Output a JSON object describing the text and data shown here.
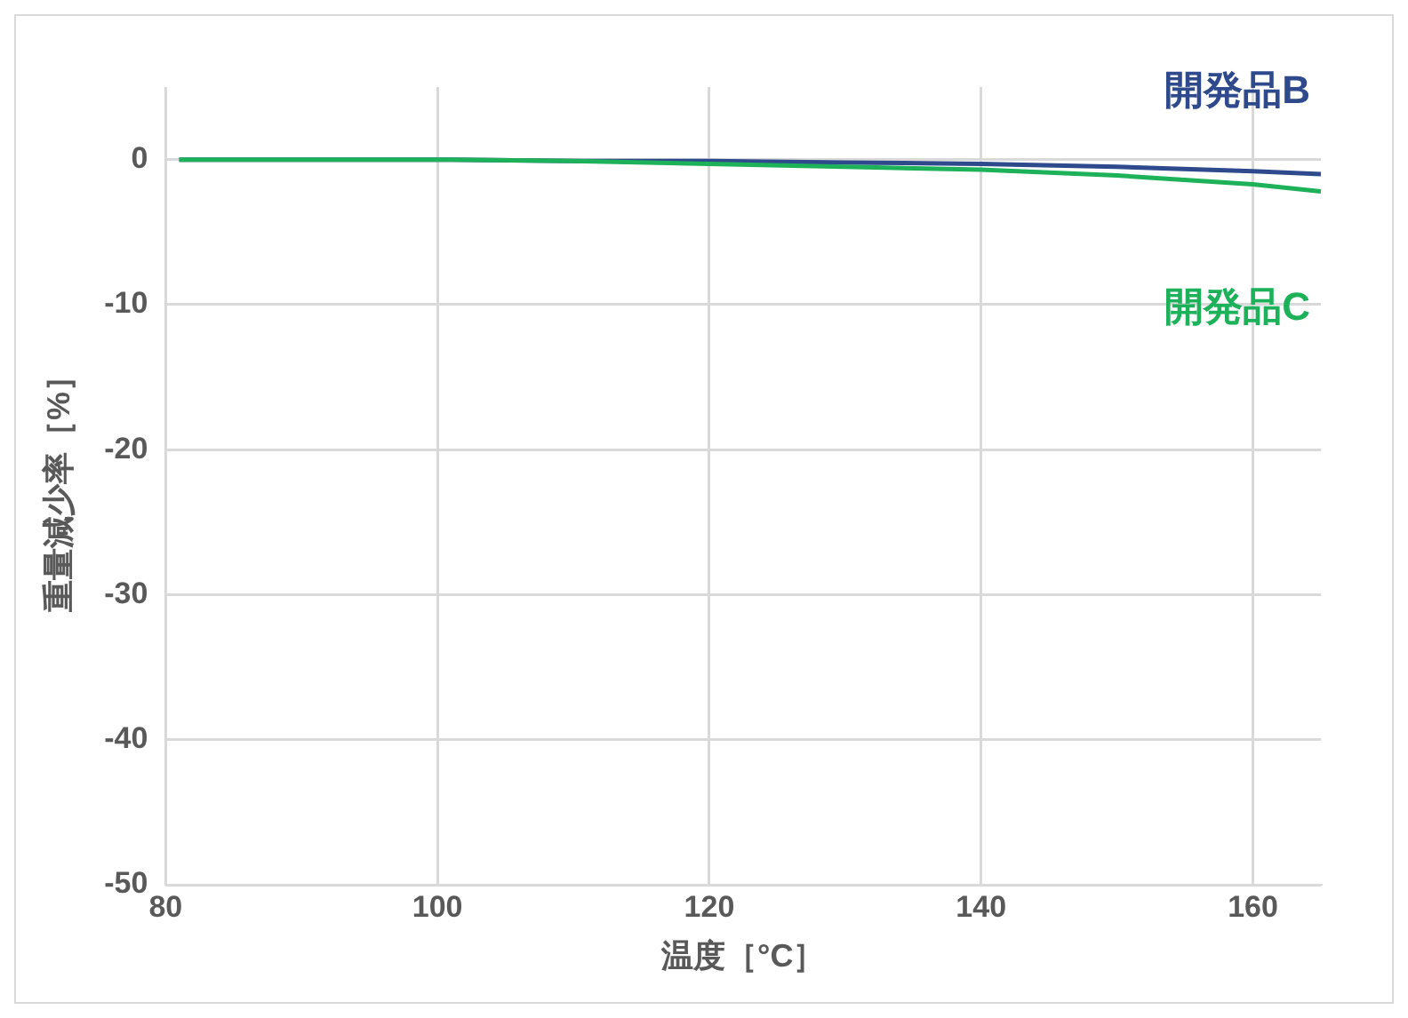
{
  "chart_data": {
    "type": "line",
    "xlabel": "温度［°C］",
    "ylabel": "重量減少率［%］",
    "xlim": [
      80,
      165
    ],
    "xticks": [
      80,
      100,
      120,
      140,
      160
    ],
    "ylim": [
      -50,
      5
    ],
    "yticks": [
      0,
      -10,
      -20,
      -30,
      -40,
      -50
    ],
    "grid": true,
    "legend": false,
    "marker": "none",
    "line_style": "solid",
    "series": [
      {
        "name": "開発品B",
        "color": "#2e4a8c",
        "x": [
          81,
          90,
          100,
          110,
          120,
          130,
          140,
          150,
          160,
          165
        ],
        "values": [
          0,
          0,
          0,
          -0.1,
          -0.1,
          -0.2,
          -0.3,
          -0.5,
          -0.8,
          -1.0
        ]
      },
      {
        "name": "開発品C",
        "color": "#1db25a",
        "x": [
          81,
          90,
          100,
          110,
          120,
          130,
          140,
          150,
          160,
          165
        ],
        "values": [
          0,
          0,
          0,
          -0.1,
          -0.3,
          -0.5,
          -0.7,
          -1.1,
          -1.7,
          -2.2
        ]
      }
    ]
  }
}
